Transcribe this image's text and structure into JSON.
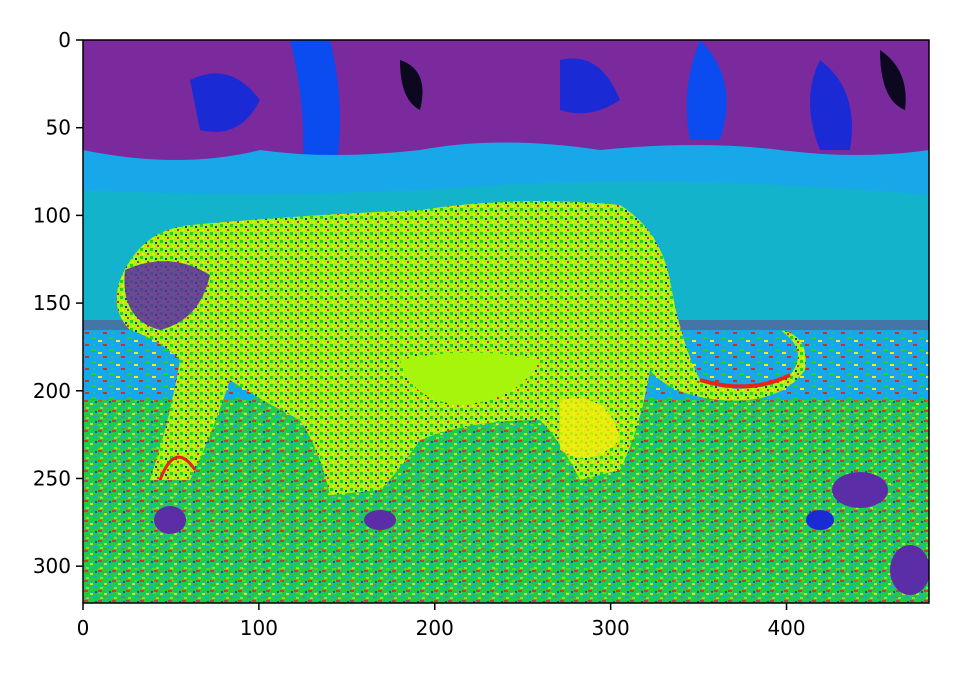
{
  "image": {
    "kind": "false-color rendering of a leopard walking across grass",
    "colormap": "nipy_spectral",
    "palette": {
      "background_top": "#7b2a9e",
      "dark_blue": "#1a2bd6",
      "blue": "#0a4cf0",
      "cyan": "#18a7e8",
      "teal": "#0fbfb0",
      "green": "#22d12a",
      "lime": "#a6f50a",
      "yellow": "#f4ef0c",
      "orange": "#f2a01a",
      "red": "#e8241a",
      "black": "#0b0820"
    }
  },
  "axes": {
    "x": {
      "range": [
        0,
        481
      ],
      "ticks": [
        "0",
        "100",
        "200",
        "300",
        "400"
      ]
    },
    "y": {
      "range": [
        0,
        321
      ],
      "inverted": true,
      "ticks": [
        "0",
        "50",
        "100",
        "150",
        "200",
        "250",
        "300"
      ]
    }
  }
}
